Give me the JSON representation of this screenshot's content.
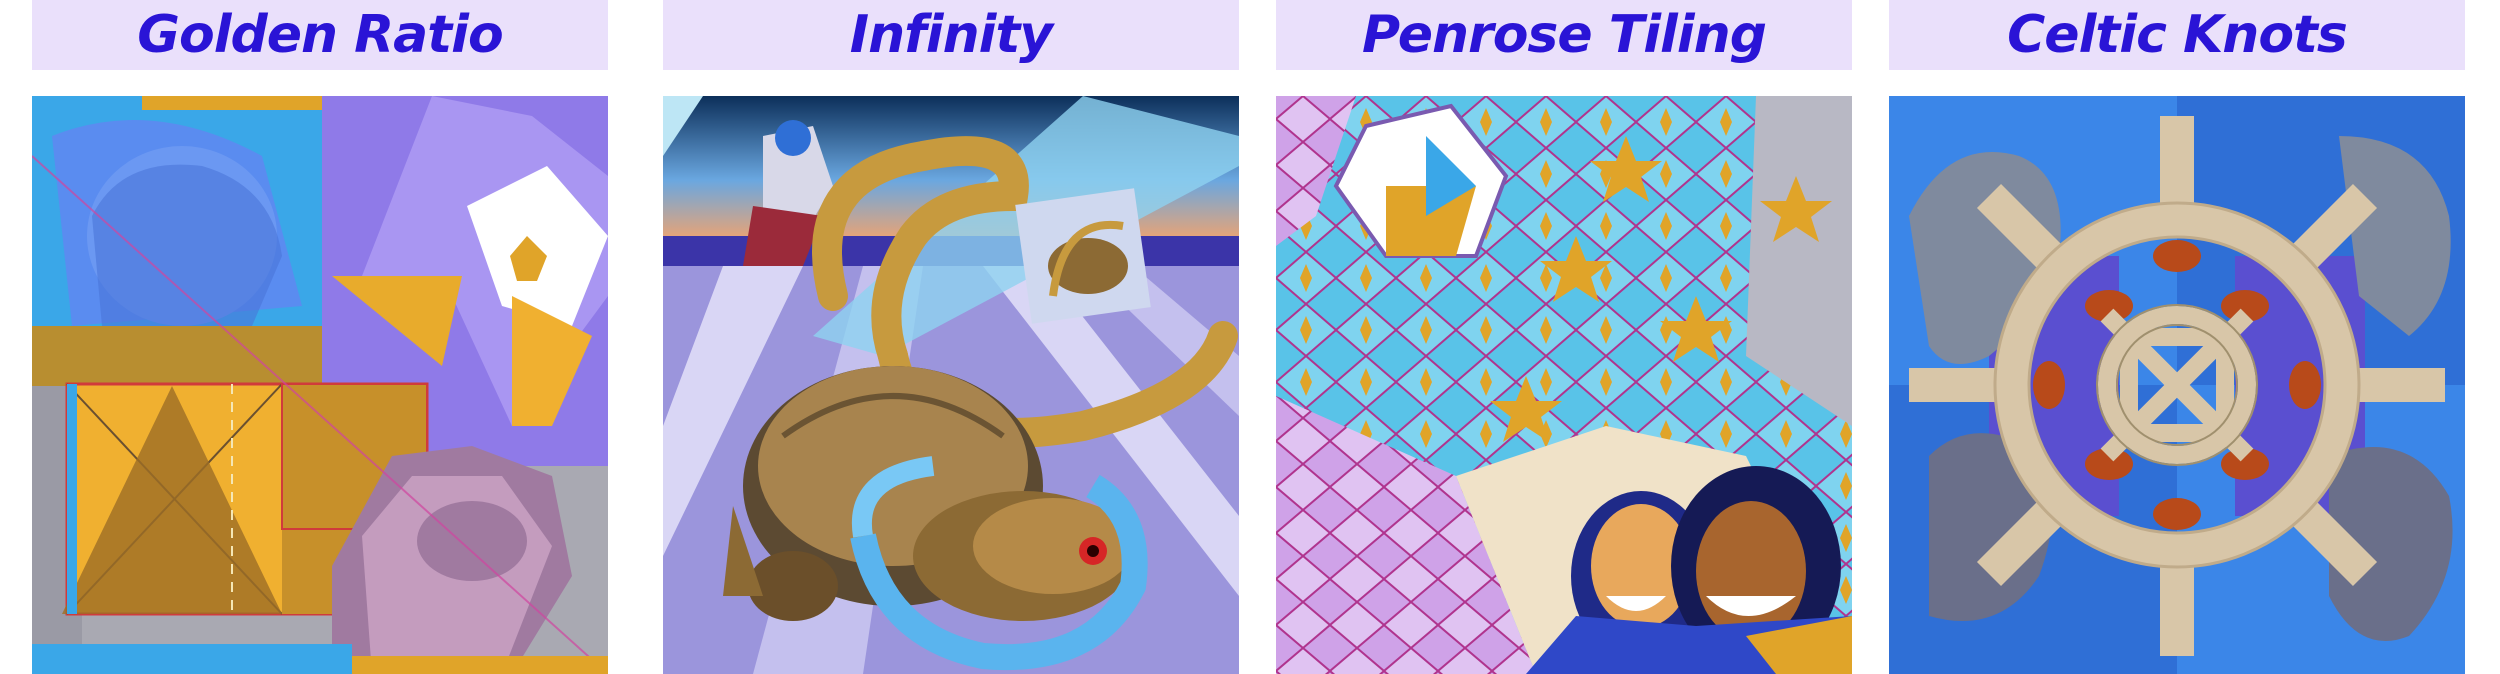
{
  "panels": [
    {
      "title": "Golden Ratio",
      "art_icon": "golden-ratio-mural"
    },
    {
      "title": "Infinity",
      "art_icon": "infinity-mural"
    },
    {
      "title": "Penrose Tiling",
      "art_icon": "penrose-tiling-mural"
    },
    {
      "title": "Celtic Knots",
      "art_icon": "celtic-knots-mural"
    }
  ],
  "colors": {
    "banner_bg": "#eae0fb",
    "title_text": "#2a14d6",
    "gold": "#e0a429",
    "blue": "#2f74e6",
    "violet": "#8c7ae8",
    "cyan": "#3fb4ea"
  }
}
